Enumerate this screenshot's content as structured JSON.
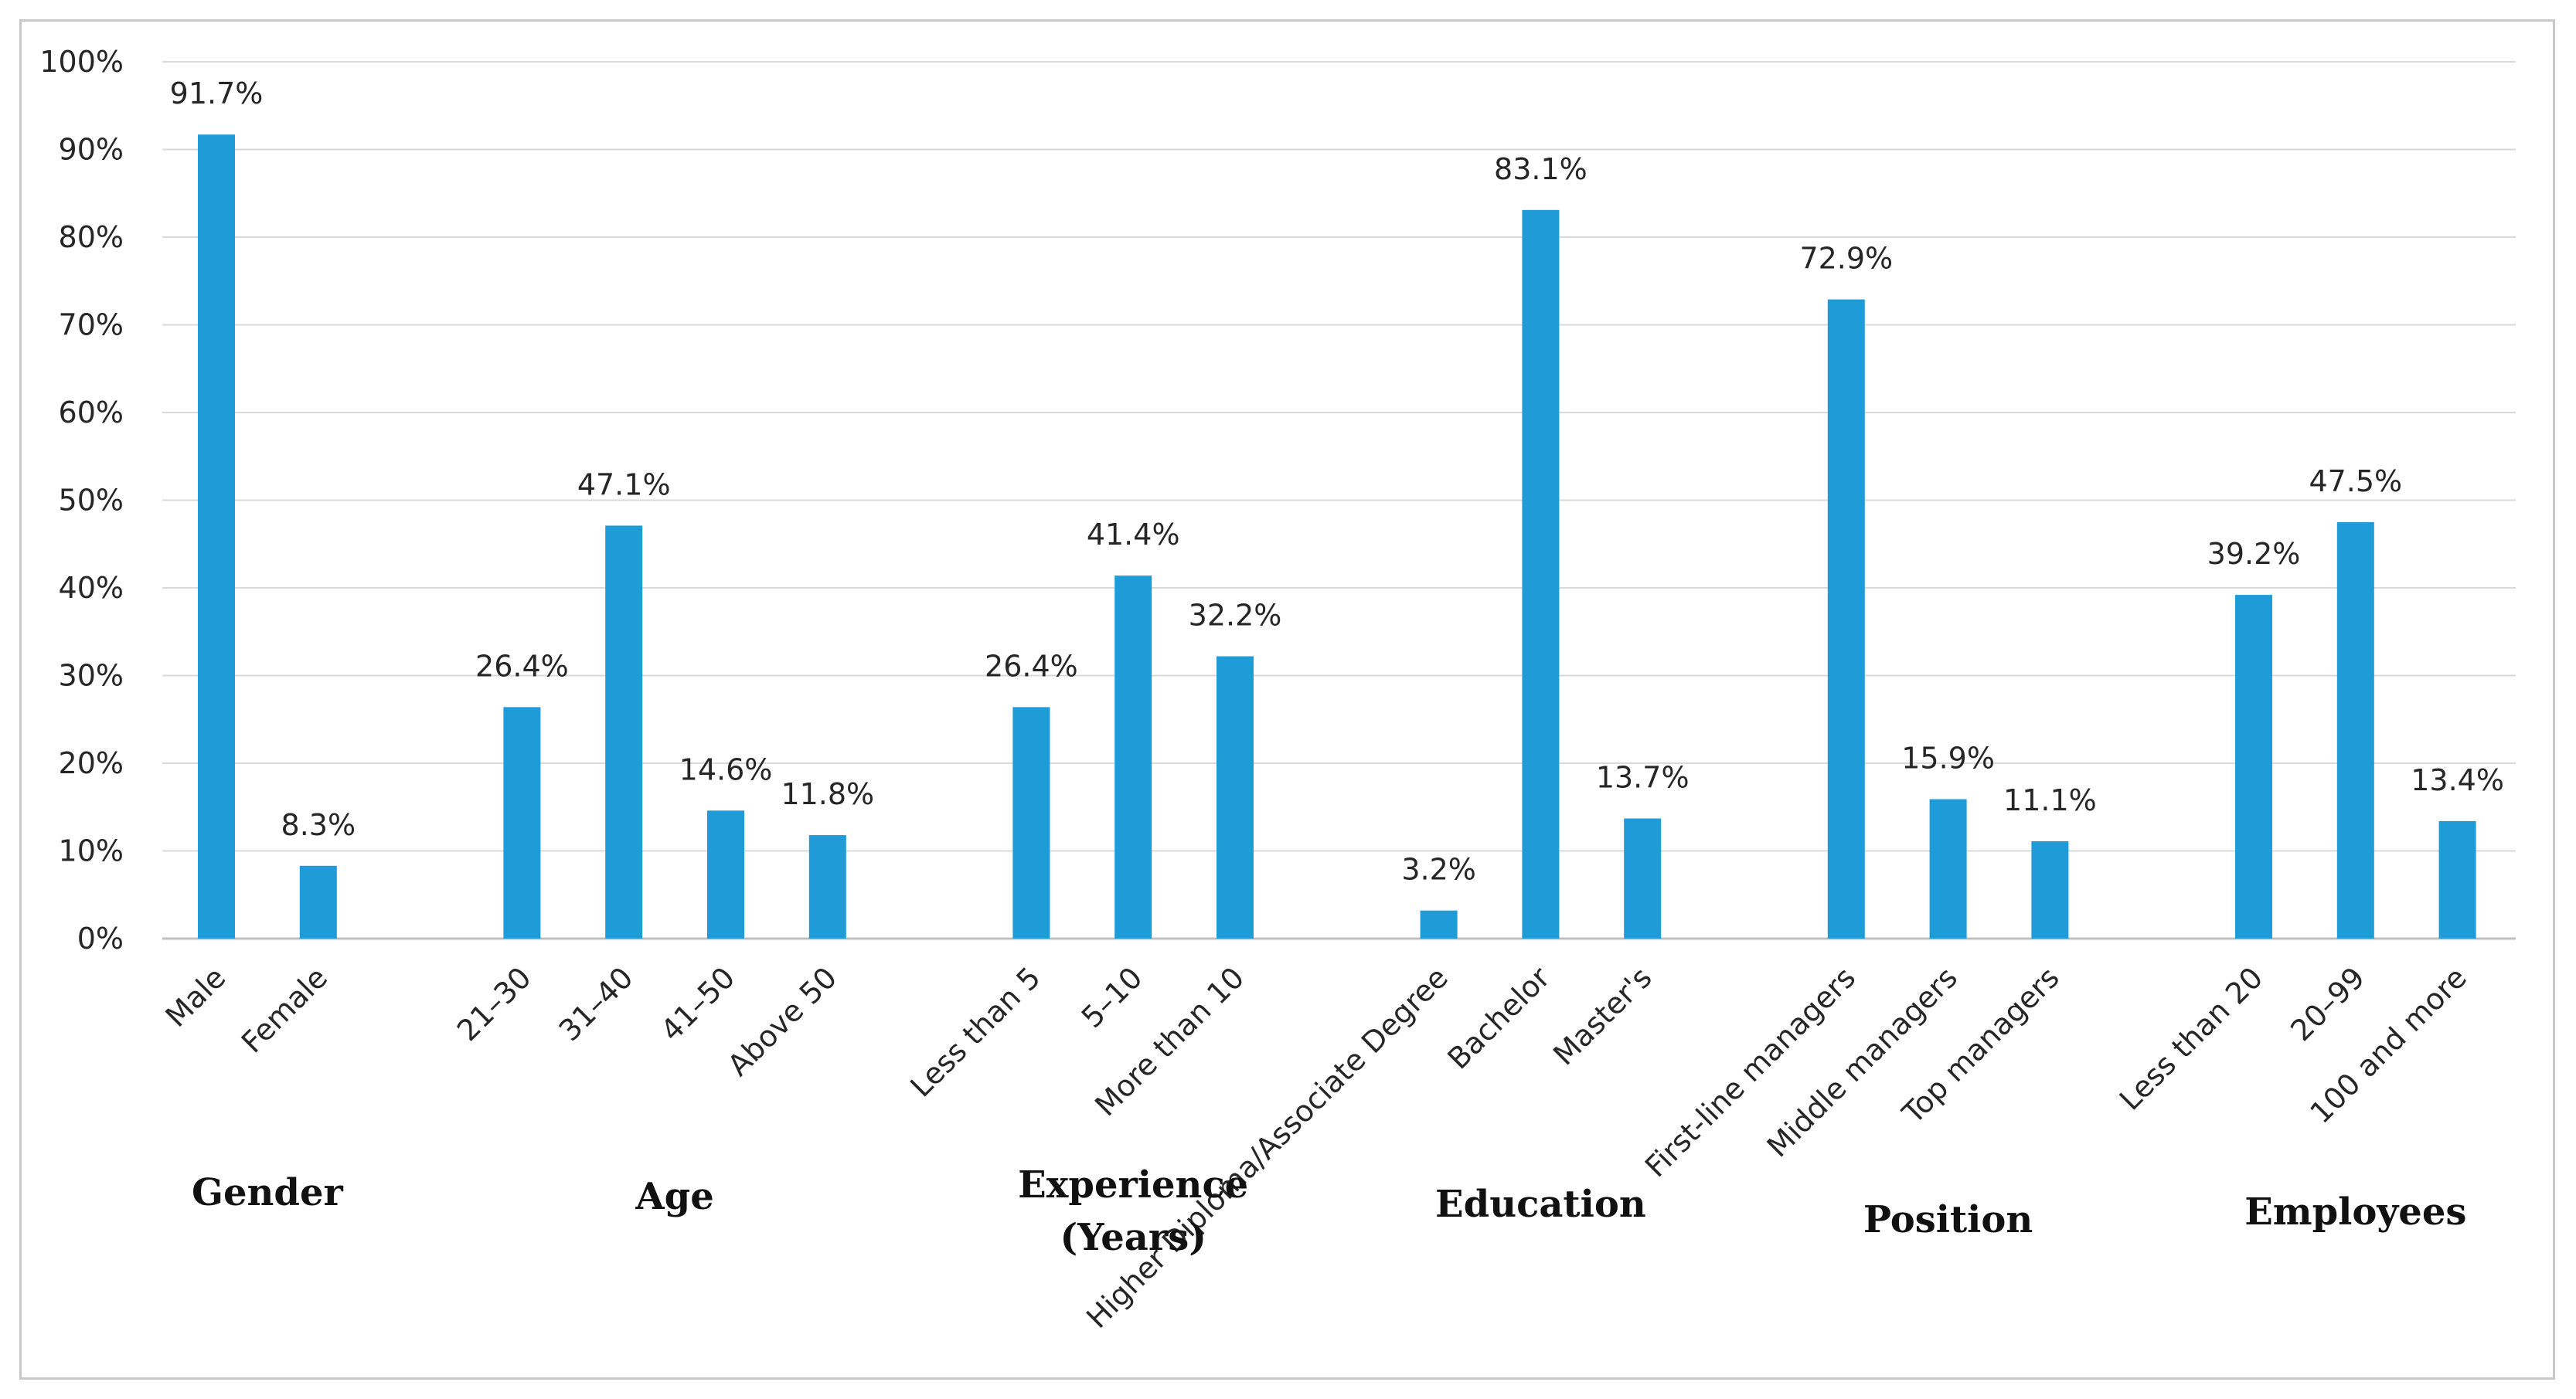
{
  "chart_data": {
    "type": "bar",
    "title": "",
    "xlabel": "",
    "ylabel": "",
    "ylim": [
      0,
      100
    ],
    "yticks": [
      "0%",
      "10%",
      "20%",
      "30%",
      "40%",
      "50%",
      "60%",
      "70%",
      "80%",
      "90%",
      "100%"
    ],
    "grid": true,
    "bar_color": "#1f9bd8",
    "groups": [
      {
        "name": "Gender",
        "label_lines": [
          "Gender"
        ],
        "categories": [
          "Male",
          "Female"
        ],
        "values": [
          91.7,
          8.3
        ],
        "value_labels": [
          "91.7%",
          "8.3%"
        ]
      },
      {
        "name": "Age",
        "label_lines": [
          "Age"
        ],
        "categories": [
          "21–30",
          "31–40",
          "41–50",
          "Above 50"
        ],
        "values": [
          26.4,
          47.1,
          14.6,
          11.8
        ],
        "value_labels": [
          "26.4%",
          "47.1%",
          "14.6%",
          "11.8%"
        ]
      },
      {
        "name": "Experience (Years)",
        "label_lines": [
          "Experience",
          "(Years)"
        ],
        "categories": [
          "Less than 5",
          "5–10",
          "More than 10"
        ],
        "values": [
          26.4,
          41.4,
          32.2
        ],
        "value_labels": [
          "26.4%",
          "41.4%",
          "32.2%"
        ]
      },
      {
        "name": "Education",
        "label_lines": [
          "Education"
        ],
        "categories": [
          "Higher Diploma/Associate Degree",
          "Bachelor",
          "Master's"
        ],
        "values": [
          3.2,
          83.1,
          13.7
        ],
        "value_labels": [
          "3.2%",
          "83.1%",
          "13.7%"
        ]
      },
      {
        "name": "Position",
        "label_lines": [
          "Position"
        ],
        "categories": [
          "First-line managers",
          "Middle managers",
          "Top managers"
        ],
        "values": [
          72.9,
          15.9,
          11.1
        ],
        "value_labels": [
          "72.9%",
          "15.9%",
          "11.1%"
        ]
      },
      {
        "name": "Employees",
        "label_lines": [
          "Employees"
        ],
        "categories": [
          "Less than 20",
          "20–99",
          "100 and more"
        ],
        "values": [
          39.2,
          47.5,
          13.4
        ],
        "value_labels": [
          "39.2%",
          "47.5%",
          "13.4%"
        ]
      }
    ]
  }
}
